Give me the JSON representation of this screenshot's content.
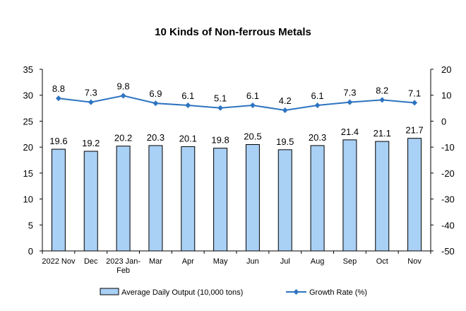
{
  "chart_data": {
    "type": "bar",
    "title": "10 Kinds of Non-ferrous Metals",
    "categories": [
      "2022 Nov",
      "Dec",
      "2023 Jan-Feb",
      "Mar",
      "Apr",
      "May",
      "Jun",
      "Jul",
      "Aug",
      "Sep",
      "Oct",
      "Nov"
    ],
    "category_lines": [
      [
        "2022 Nov"
      ],
      [
        "Dec"
      ],
      [
        "2023 Jan-",
        "Feb"
      ],
      [
        "Mar"
      ],
      [
        "Apr"
      ],
      [
        "May"
      ],
      [
        "Jun"
      ],
      [
        "Jul"
      ],
      [
        "Aug"
      ],
      [
        "Sep"
      ],
      [
        "Oct"
      ],
      [
        "Nov"
      ]
    ],
    "series": [
      {
        "name": "Average Daily Output (10,000 tons)",
        "type": "bar",
        "axis": "left",
        "values": [
          19.6,
          19.2,
          20.2,
          20.3,
          20.1,
          19.8,
          20.5,
          19.5,
          20.3,
          21.4,
          21.1,
          21.7
        ],
        "labels": [
          "19.6",
          "19.2",
          "20.2",
          "20.3",
          "20.1",
          "19.8",
          "20.5",
          "19.5",
          "20.3",
          "21.4",
          "21.1",
          "21.7"
        ]
      },
      {
        "name": "Growth Rate (%)",
        "type": "line",
        "axis": "right",
        "values": [
          8.8,
          7.3,
          9.8,
          6.9,
          6.1,
          5.1,
          6.1,
          4.2,
          6.1,
          7.3,
          8.2,
          7.1
        ],
        "labels": [
          "8.8",
          "7.3",
          "9.8",
          "6.9",
          "6.1",
          "5.1",
          "6.1",
          "4.2",
          "6.1",
          "7.3",
          "8.2",
          "7.1"
        ]
      }
    ],
    "y_left": {
      "min": 0,
      "max": 35,
      "ticks": [
        "0",
        "5",
        "10",
        "15",
        "20",
        "25",
        "30",
        "35"
      ]
    },
    "y_right": {
      "min": -50,
      "max": 20,
      "ticks": [
        "-50",
        "-40",
        "-30",
        "-20",
        "-10",
        "0",
        "10",
        "20"
      ]
    },
    "grid": false,
    "legend_position": "bottom",
    "colors": {
      "bar_fill": "#a9d0f5",
      "bar_stroke": "#000000",
      "line": "#2e74c0"
    }
  }
}
